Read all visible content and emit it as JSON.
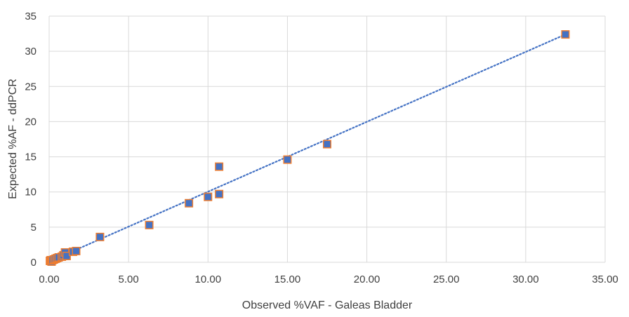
{
  "chart_data": {
    "type": "scatter",
    "title": "",
    "xlabel": "Observed %VAF - Galeas Bladder",
    "ylabel": "Expected %AF - ddPCR",
    "xlim": [
      0,
      35
    ],
    "ylim": [
      0,
      35
    ],
    "x_ticks": [
      "0.00",
      "5.00",
      "10.00",
      "15.00",
      "20.00",
      "25.00",
      "30.00",
      "35.00"
    ],
    "y_ticks": [
      "0",
      "5",
      "10",
      "15",
      "20",
      "25",
      "30",
      "35"
    ],
    "grid": true,
    "legend": "none",
    "trendline": {
      "type": "linear",
      "style": "dotted",
      "from": [
        0.1,
        0.2
      ],
      "to": [
        32.5,
        32.4
      ]
    },
    "colors": {
      "marker_outer": "#ed7d31",
      "marker_inner": "#4472c4",
      "trendline": "#4472c4",
      "grid": "#d9d9d9"
    },
    "series": [
      {
        "x": [
          0.05,
          0.1,
          0.15,
          0.2,
          0.3,
          0.4,
          0.5,
          0.6,
          0.8,
          0.9,
          1.0,
          1.1,
          1.5,
          1.7,
          3.2,
          6.3,
          8.8,
          10.0,
          10.7,
          10.7,
          15.0,
          17.5,
          32.5
        ],
        "y": [
          0.2,
          0.3,
          0.1,
          0.3,
          0.4,
          0.5,
          0.6,
          0.7,
          0.8,
          1.0,
          1.4,
          0.9,
          1.5,
          1.6,
          3.6,
          5.3,
          8.4,
          9.3,
          9.7,
          13.6,
          14.6,
          16.8,
          32.4
        ]
      }
    ]
  }
}
